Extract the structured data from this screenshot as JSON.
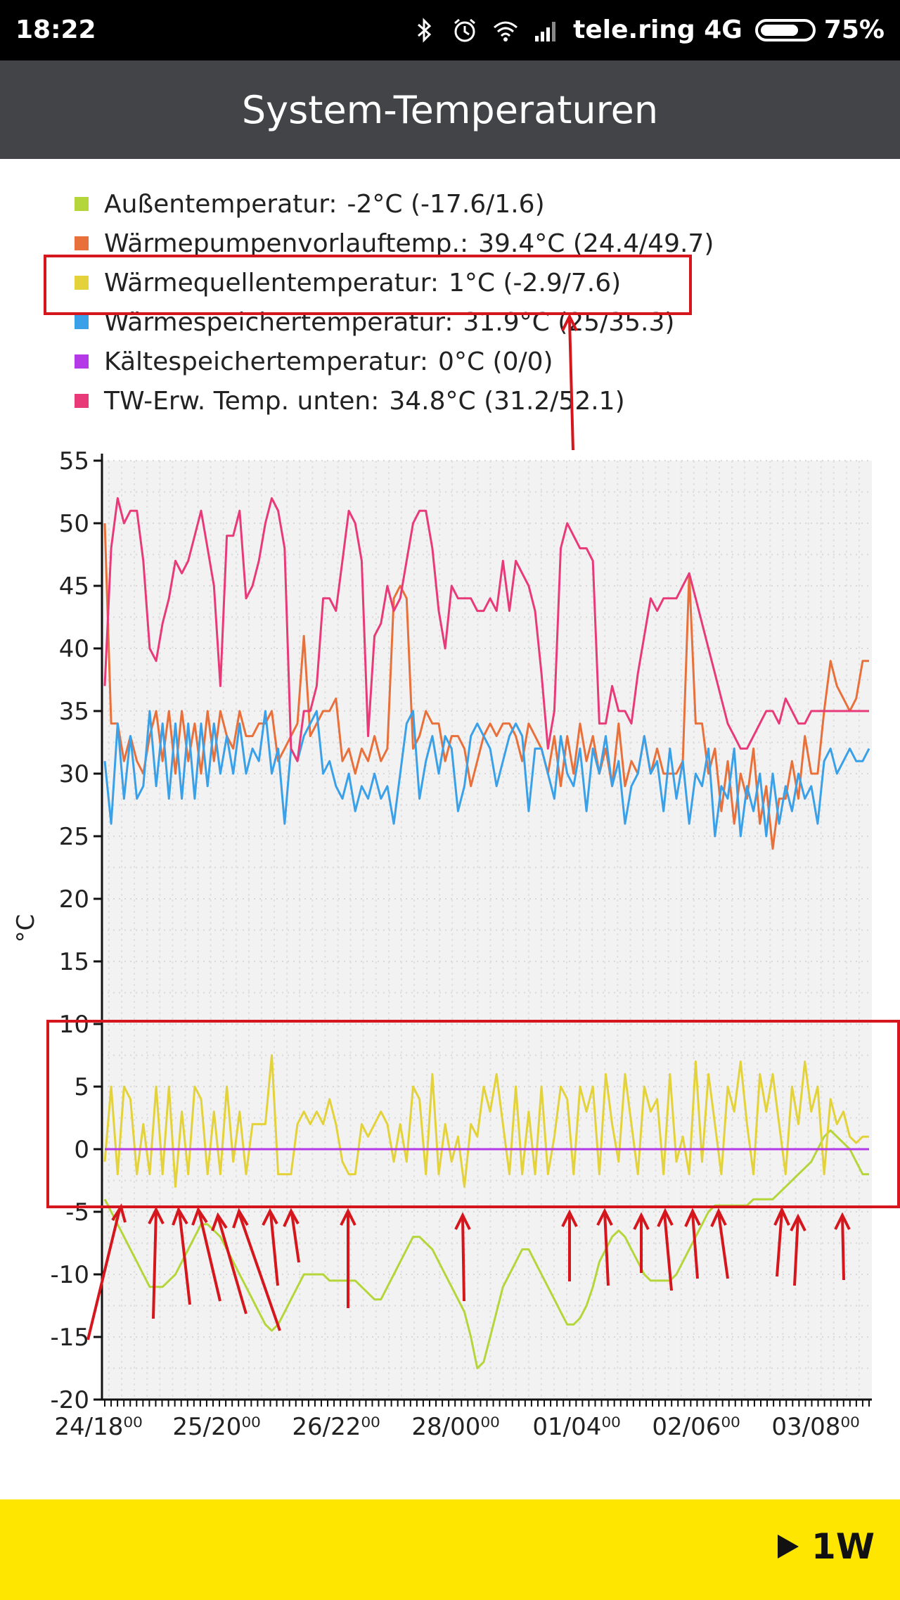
{
  "status_bar": {
    "time": "18:22",
    "carrier": "tele.ring 4G",
    "battery": "75%",
    "battery_level": 0.75,
    "icons": [
      "bluetooth-icon",
      "alarm-icon",
      "wifi-icon",
      "signal-icon",
      "battery-icon"
    ]
  },
  "app_bar": {
    "title": "System-Temperaturen"
  },
  "legend": [
    {
      "label": "Außentemperatur:",
      "value": "-2°C (-17.6/1.6)",
      "color": "#b5d63b"
    },
    {
      "label": "Wärmepumpenvorlauftemp.:",
      "value": "39.4°C (24.4/49.7)",
      "color": "#e8703a"
    },
    {
      "label": "Wärmequellentemperatur:",
      "value": "1°C (-2.9/7.6)",
      "color": "#e3d23a"
    },
    {
      "label": "Wärmespeichertemperatur:",
      "value": "31.9°C (25/35.3)",
      "color": "#3aa0e8"
    },
    {
      "label": "Kältespeichertemperatur:",
      "value": "0°C (0/0)",
      "color": "#b43ae8"
    },
    {
      "label": "TW-Erw. Temp. unten:",
      "value": "34.8°C (31.2/52.1)",
      "color": "#e83a78"
    }
  ],
  "chart_data": {
    "type": "line",
    "ylabel": "°C",
    "ylim": [
      -20,
      55
    ],
    "yticks": [
      55,
      50,
      45,
      40,
      35,
      30,
      25,
      20,
      15,
      10,
      5,
      0,
      -5,
      -10,
      -15,
      -20
    ],
    "xtick_labels": [
      "24/18⁰⁰",
      "25/20⁰⁰",
      "26/22⁰⁰",
      "28/00⁰⁰",
      "01/04⁰⁰",
      "02/06⁰⁰",
      "03/08⁰⁰"
    ],
    "x_count": 120,
    "grid": true,
    "series": [
      {
        "name": "Außentemperatur",
        "color": "#b5d63b",
        "values": [
          -4,
          -5,
          -6,
          -7,
          -8,
          -9,
          -10,
          -11,
          -11,
          -11,
          -10.5,
          -10,
          -9,
          -8,
          -7,
          -6,
          -6,
          -6.5,
          -7,
          -8,
          -9,
          -10,
          -11,
          -12,
          -13,
          -14,
          -14.5,
          -14,
          -13,
          -12,
          -11,
          -10,
          -10,
          -10,
          -10,
          -10.5,
          -10.5,
          -10.5,
          -10.5,
          -10.5,
          -11,
          -11.5,
          -12,
          -12,
          -11,
          -10,
          -9,
          -8,
          -7,
          -7,
          -7.5,
          -8,
          -9,
          -10,
          -11,
          -12,
          -13,
          -15,
          -17.5,
          -17,
          -15,
          -13,
          -11,
          -10,
          -9,
          -8,
          -8,
          -9,
          -10,
          -11,
          -12,
          -13,
          -14,
          -14,
          -13.5,
          -12.5,
          -11,
          -9,
          -8,
          -7,
          -6.5,
          -7,
          -8,
          -9,
          -10,
          -10.5,
          -10.5,
          -10.5,
          -10.5,
          -10,
          -9,
          -8,
          -7,
          -6,
          -5,
          -4.5,
          -4.5,
          -4.5,
          -4.5,
          -4.5,
          -4.5,
          -4,
          -4,
          -4,
          -4,
          -3.5,
          -3,
          -2.5,
          -2,
          -1.5,
          -1,
          0,
          1,
          1.5,
          1,
          0.5,
          0,
          -1,
          -2,
          -2
        ]
      },
      {
        "name": "Wärmepumpenvorlauftemp.",
        "color": "#e8703a",
        "values": [
          50,
          34,
          34,
          31,
          33,
          31,
          30,
          33,
          35,
          31,
          35,
          30,
          35,
          31,
          34,
          30,
          35,
          31,
          35,
          33,
          32,
          35,
          33,
          33,
          34,
          34,
          35,
          31,
          32,
          33,
          34,
          41,
          33,
          34,
          35,
          35,
          36,
          31,
          32,
          30,
          32,
          31,
          33,
          31,
          32,
          44,
          45,
          44,
          32,
          33,
          35,
          34,
          34,
          31,
          33,
          33,
          32,
          29,
          31,
          33,
          34,
          33,
          34,
          34,
          33,
          31,
          34,
          33,
          32,
          30,
          33,
          29,
          33,
          30,
          34,
          31,
          33,
          30,
          32,
          29,
          34,
          29,
          31,
          30,
          33,
          30,
          32,
          30,
          30,
          30,
          31,
          46,
          34,
          34,
          30,
          32,
          27,
          31,
          26,
          30,
          28,
          32,
          26,
          29,
          24,
          28,
          28,
          31,
          28,
          33,
          30,
          30,
          35,
          39,
          37,
          36,
          35,
          36,
          39,
          39
        ]
      },
      {
        "name": "Wärmespeichertemperatur",
        "color": "#3aa0e8",
        "values": [
          31,
          26,
          34,
          28,
          33,
          28,
          29,
          35,
          29,
          34,
          28,
          34,
          28,
          34,
          28,
          34,
          29,
          34,
          30,
          33,
          30,
          34,
          30,
          32,
          31,
          35,
          30,
          32,
          26,
          32,
          31,
          33,
          34,
          35,
          30,
          31,
          29,
          28,
          30,
          27,
          29,
          28,
          30,
          28,
          29,
          26,
          30,
          34,
          35,
          28,
          31,
          33,
          30,
          33,
          32,
          27,
          29,
          33,
          34,
          33,
          32,
          29,
          31,
          33,
          34,
          33,
          27,
          32,
          32,
          30,
          28,
          33,
          30,
          29,
          32,
          27,
          32,
          30,
          33,
          29,
          31,
          26,
          29,
          30,
          33,
          30,
          31,
          27,
          32,
          28,
          31,
          26,
          30,
          29,
          32,
          25,
          29,
          28,
          32,
          25,
          29,
          27,
          30,
          25,
          30,
          26,
          29,
          27,
          30,
          28,
          29,
          26,
          31,
          32,
          30,
          31,
          32,
          31,
          31,
          32
        ]
      },
      {
        "name": "Wärmequellentemperatur",
        "color": "#e3d23a",
        "values": [
          -1,
          5,
          -2,
          5,
          4,
          -2,
          2,
          -2,
          5,
          -2,
          5,
          -3,
          3,
          -2,
          5,
          4,
          -2,
          3,
          -2,
          5,
          -1,
          3,
          -2,
          2,
          2,
          2,
          7.5,
          -2,
          -2,
          -2,
          2,
          3,
          2,
          3,
          2,
          4,
          2,
          -1,
          -2,
          -2,
          2,
          1,
          2,
          3,
          2,
          -1,
          2,
          -1,
          5,
          4,
          -2,
          6,
          -2,
          2,
          -1,
          1,
          -3,
          2,
          1,
          5,
          3,
          6,
          2,
          -2,
          5,
          -2,
          3,
          -2,
          5,
          -2,
          1,
          5,
          4,
          -2,
          5,
          3,
          5,
          -2,
          6,
          2,
          -1,
          6,
          2,
          -2,
          5,
          3,
          4,
          -2,
          6,
          -1,
          1,
          -2,
          7,
          -1,
          6,
          2,
          -2,
          5,
          3,
          7,
          2,
          -2,
          6,
          3,
          6,
          2,
          -2,
          5,
          2,
          7,
          3,
          5,
          -2,
          4,
          2,
          3,
          1,
          0.5,
          1,
          1
        ]
      },
      {
        "name": "Kältespeichertemperatur",
        "color": "#b43ae8",
        "values": [
          0,
          0,
          0,
          0,
          0,
          0,
          0,
          0,
          0,
          0,
          0,
          0,
          0,
          0,
          0,
          0,
          0,
          0,
          0,
          0,
          0,
          0,
          0,
          0,
          0,
          0,
          0,
          0,
          0,
          0,
          0,
          0,
          0,
          0,
          0,
          0,
          0,
          0,
          0,
          0,
          0,
          0,
          0,
          0,
          0,
          0,
          0,
          0,
          0,
          0,
          0,
          0,
          0,
          0,
          0,
          0,
          0,
          0,
          0,
          0,
          0,
          0,
          0,
          0,
          0,
          0,
          0,
          0,
          0,
          0,
          0,
          0,
          0,
          0,
          0,
          0,
          0,
          0,
          0,
          0,
          0,
          0,
          0,
          0,
          0,
          0,
          0,
          0,
          0,
          0,
          0,
          0,
          0,
          0,
          0,
          0,
          0,
          0,
          0,
          0,
          0,
          0,
          0,
          0,
          0,
          0,
          0,
          0,
          0,
          0,
          0,
          0,
          0,
          0,
          0,
          0,
          0,
          0,
          0,
          0
        ]
      },
      {
        "name": "TW-Erw. Temp. unten",
        "color": "#e83a78",
        "values": [
          37,
          48,
          52,
          50,
          51,
          51,
          47,
          40,
          39,
          42,
          44,
          47,
          46,
          47,
          49,
          51,
          48,
          45,
          37,
          49,
          49,
          51,
          44,
          45,
          47,
          50,
          52,
          51,
          48,
          32,
          31,
          35,
          35,
          37,
          44,
          44,
          43,
          47,
          51,
          50,
          47,
          33,
          41,
          42,
          45,
          43,
          44,
          47,
          50,
          51,
          51,
          48,
          43,
          40,
          45,
          44,
          44,
          44,
          43,
          43,
          44,
          43,
          47,
          43,
          47,
          46,
          45,
          43,
          38,
          32,
          35,
          48,
          50,
          49,
          48,
          48,
          47,
          34,
          34,
          37,
          35,
          35,
          34,
          38,
          41,
          44,
          43,
          44,
          44,
          44,
          45,
          46,
          44,
          42,
          40,
          38,
          36,
          34,
          33,
          32,
          32,
          33,
          34,
          35,
          35,
          34,
          36,
          35,
          34,
          34,
          35,
          35,
          35,
          35,
          35,
          35,
          35,
          35,
          35,
          35
        ]
      }
    ]
  }
}
